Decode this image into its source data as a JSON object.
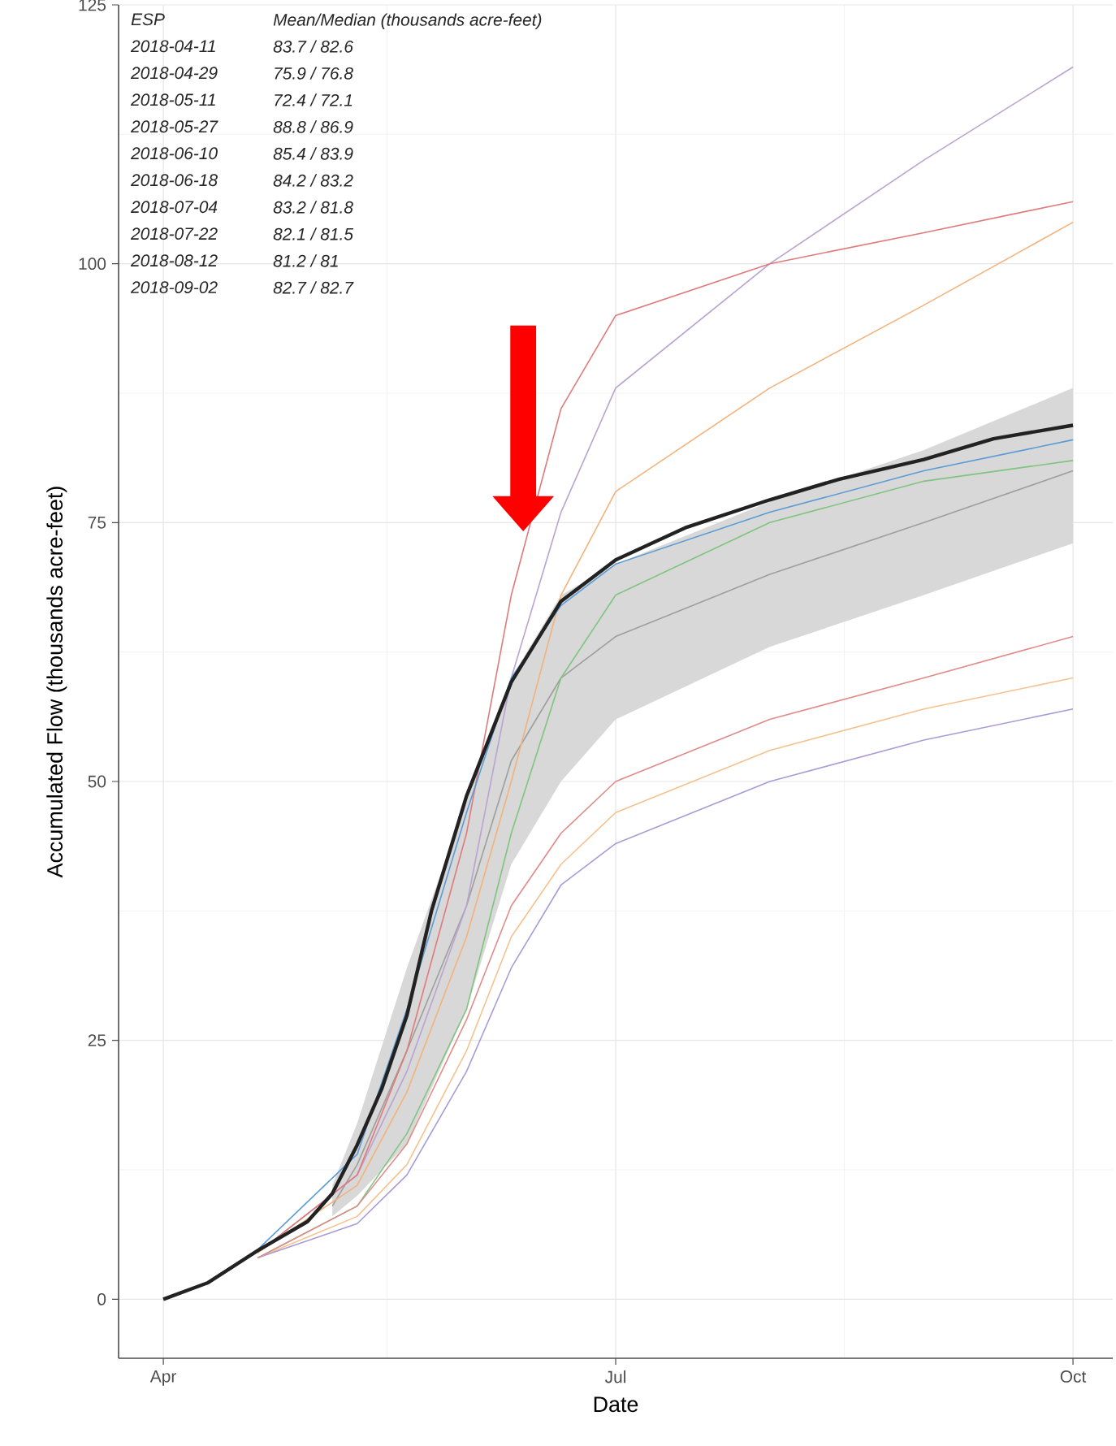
{
  "chart_data": {
    "type": "line",
    "xlabel": "Date",
    "ylabel": "Accumulated Flow (thousands acre-feet)",
    "xlim": [
      "2018-03-23",
      "2018-10-09"
    ],
    "ylim": [
      -5.7,
      125
    ],
    "xticks": [
      {
        "value": "2018-04-01",
        "label": "Apr"
      },
      {
        "value": "2018-05-16",
        "label": null
      },
      {
        "value": "2018-07-01",
        "label": "Jul"
      },
      {
        "value": "2018-08-16",
        "label": null
      },
      {
        "value": "2018-10-01",
        "label": "Oct"
      }
    ],
    "yticks": [
      0,
      {
        "value": 12.5,
        "label": null
      },
      25,
      {
        "value": 37.5,
        "label": null
      },
      50,
      {
        "value": 62.5,
        "label": null
      },
      75,
      {
        "value": 87.5,
        "label": null
      },
      100,
      {
        "value": 112.5,
        "label": null
      },
      125
    ],
    "grid": true,
    "annotations": [
      "ESP",
      "Mean/Median (thousands acre-feet)",
      "2018-04-11",
      "83.7 / 82.6",
      "2018-04-29",
      "75.9 / 76.8",
      "2018-05-11",
      "72.4 / 72.1",
      "2018-05-27",
      "88.8 / 86.9",
      "2018-06-10",
      "85.4 / 83.9",
      "2018-06-18",
      "84.2 / 83.2",
      "2018-07-04",
      "83.2 / 81.8",
      "2018-07-22",
      "82.1 / 81.5",
      "2018-08-12",
      "81.2 / 81",
      "2018-09-02",
      "82.7 / 82.7"
    ],
    "series": [
      {
        "color": "#9e9e9e",
        "x": [
          "2018-05-05",
          "2018-05-10",
          "2018-05-20",
          "2018-06-01",
          "2018-06-10",
          "2018-06-20",
          "2018-07-01",
          "2018-08-01",
          "2018-09-01",
          "2018-10-01"
        ],
        "values": [
          9,
          13,
          24,
          38,
          52,
          60,
          64,
          70,
          75,
          80
        ],
        "lower": [
          8,
          10,
          15,
          28,
          42,
          50,
          56,
          63,
          68,
          73
        ],
        "upper": [
          11,
          17,
          32,
          48,
          60,
          68,
          71,
          77,
          82,
          88
        ]
      },
      {
        "color": "#b9a3d1",
        "x": [
          "2018-04-20",
          "2018-05-10",
          "2018-05-20",
          "2018-06-01",
          "2018-06-10",
          "2018-06-20",
          "2018-07-01",
          "2018-08-01",
          "2018-09-01",
          "2018-10-01"
        ],
        "values": [
          4.5,
          12,
          22,
          38,
          60,
          76,
          88,
          100,
          110,
          119
        ]
      },
      {
        "color": "#e07a7a",
        "x": [
          "2018-04-20",
          "2018-05-10",
          "2018-05-20",
          "2018-06-01",
          "2018-06-10",
          "2018-06-20",
          "2018-07-01",
          "2018-08-01",
          "2018-09-01",
          "2018-10-01"
        ],
        "values": [
          4.5,
          12,
          24,
          45,
          68,
          86,
          95,
          100,
          103,
          106
        ]
      },
      {
        "color": "#f2b27a",
        "x": [
          "2018-04-20",
          "2018-05-10",
          "2018-05-20",
          "2018-06-01",
          "2018-06-10",
          "2018-06-20",
          "2018-07-01",
          "2018-08-01",
          "2018-09-01",
          "2018-10-01"
        ],
        "values": [
          4.5,
          11,
          20,
          35,
          50,
          68,
          78,
          88,
          96,
          104
        ]
      },
      {
        "color": "#7fc47f",
        "x": [
          "2018-04-20",
          "2018-05-10",
          "2018-05-20",
          "2018-06-01",
          "2018-06-10",
          "2018-06-20",
          "2018-07-01",
          "2018-08-01",
          "2018-09-01",
          "2018-10-01"
        ],
        "values": [
          4,
          9,
          16,
          28,
          45,
          60,
          68,
          75,
          79,
          81
        ]
      },
      {
        "color": "#f5c28f",
        "x": [
          "2018-04-20",
          "2018-05-10",
          "2018-05-20",
          "2018-06-01",
          "2018-06-10",
          "2018-06-20",
          "2018-07-01",
          "2018-08-01",
          "2018-09-01",
          "2018-10-01"
        ],
        "values": [
          4,
          8,
          13,
          24,
          35,
          42,
          47,
          53,
          57,
          60
        ]
      },
      {
        "color": "#a99bd6",
        "x": [
          "2018-04-20",
          "2018-05-10",
          "2018-05-20",
          "2018-06-01",
          "2018-06-10",
          "2018-06-20",
          "2018-07-01",
          "2018-08-01",
          "2018-09-01",
          "2018-10-01"
        ],
        "values": [
          4,
          7.3,
          12,
          22,
          32,
          40,
          44,
          50,
          54,
          57
        ]
      },
      {
        "color": "#e08a8a",
        "x": [
          "2018-04-20",
          "2018-05-10",
          "2018-05-20",
          "2018-06-01",
          "2018-06-10",
          "2018-06-20",
          "2018-07-01",
          "2018-08-01",
          "2018-09-01",
          "2018-10-01"
        ],
        "values": [
          4,
          9,
          15,
          27,
          38,
          45,
          50,
          56,
          60,
          64
        ]
      },
      {
        "color": "#5b9bd5",
        "x": [
          "2018-04-20",
          "2018-05-10",
          "2018-05-20",
          "2018-06-01",
          "2018-06-10",
          "2018-06-20",
          "2018-07-01",
          "2018-08-01",
          "2018-09-01",
          "2018-10-01"
        ],
        "values": [
          4.8,
          14,
          28,
          47,
          60,
          67,
          71,
          76,
          80,
          83
        ]
      },
      {
        "color": "#222222",
        "x": [
          "2018-04-01",
          "2018-04-10",
          "2018-04-20",
          "2018-04-30",
          "2018-05-05",
          "2018-05-10",
          "2018-05-15",
          "2018-05-20",
          "2018-05-25",
          "2018-06-01",
          "2018-06-10",
          "2018-06-20",
          "2018-07-01",
          "2018-07-15",
          "2018-08-01",
          "2018-08-15",
          "2018-09-01",
          "2018-09-15",
          "2018-10-01"
        ],
        "values": [
          0,
          1.6,
          4.7,
          7.5,
          10.2,
          14.9,
          20.4,
          27.4,
          37.6,
          48.6,
          59.6,
          67.4,
          71.4,
          74.5,
          77.2,
          79.2,
          81.1,
          83.1,
          84.4
        ]
      }
    ]
  }
}
